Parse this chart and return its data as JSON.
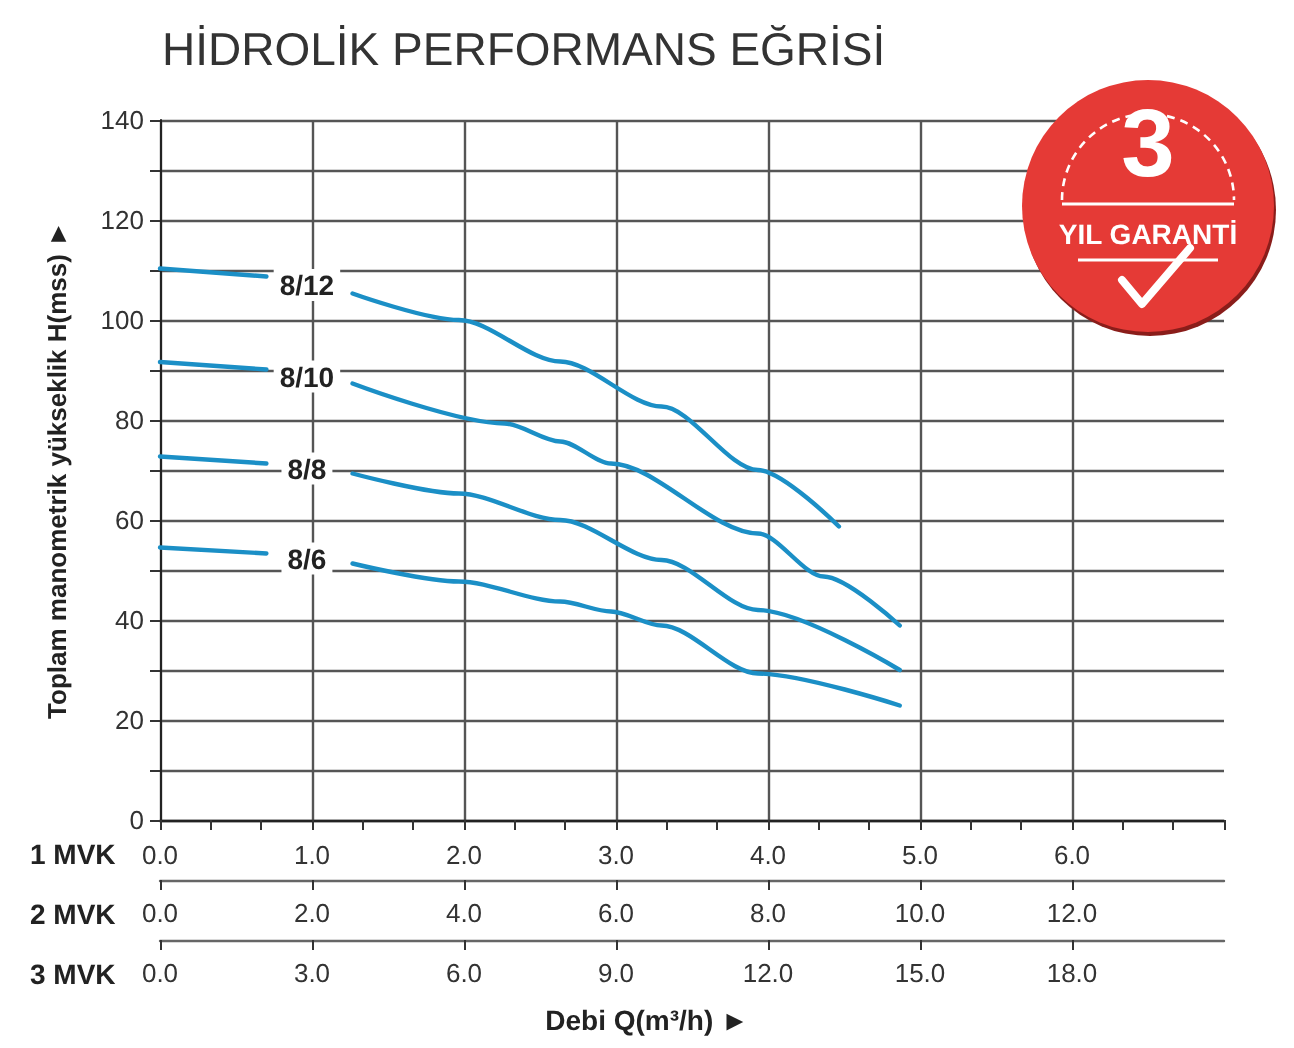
{
  "chart_data": {
    "type": "line",
    "title": "HİDROLİK PERFORMANS EĞRİSİ",
    "xlabel": "Debi Q(m³/h) ►",
    "ylabel": "Toplam manometrik yükseklik H(mss) ►",
    "annotations": [
      "1 MVK",
      "0.0",
      "1.0",
      "2.0",
      "3.0",
      "4.0",
      "5.0",
      "6.0",
      "3 MVK",
      "3",
      "YIL GARANTİ"
    ],
    "x2label": "2 MVK",
    "series": [
      {
        "name": "8/12",
        "color": "#1b8fc6",
        "x": [
          0,
          2.1,
          2.9,
          3.8,
          5.9,
          7.9,
          9.9,
          11.8,
          13.4
        ],
        "values": [
          110.3,
          108.7,
          null,
          105.3,
          100,
          91.7,
          82.7,
          70,
          58.7
        ]
      },
      {
        "name": "8/10",
        "color": "#1b8fc6",
        "x": [
          0,
          2.1,
          2.9,
          3.8,
          6.8,
          7.9,
          8.9,
          11.8,
          13.1,
          14.6
        ],
        "values": [
          91.6,
          90.1,
          null,
          87.3,
          79.3,
          75.7,
          71.3,
          57.3,
          48.7,
          38.9
        ]
      },
      {
        "name": "8/8",
        "color": "#1b8fc6",
        "x": [
          0,
          2.1,
          2.9,
          3.8,
          5.9,
          7.9,
          9.9,
          11.8,
          14.6
        ],
        "values": [
          72.7,
          71.3,
          null,
          69.3,
          65.3,
          60,
          52,
          42,
          30
        ]
      },
      {
        "name": "8/6",
        "color": "#1b8fc6",
        "x": [
          0,
          2.1,
          2.9,
          3.8,
          5.9,
          7.9,
          8.9,
          9.9,
          11.8,
          14.6
        ],
        "values": [
          54.5,
          53.3,
          null,
          51.3,
          47.7,
          43.7,
          41.7,
          38.9,
          29.3,
          22.9
        ]
      }
    ],
    "xlim": [
      0,
      21
    ],
    "xticks": [
      {
        "value": 0,
        "label": "0.0"
      },
      {
        "value": 1,
        "label": null
      },
      {
        "value": 2,
        "label": null
      },
      {
        "value": 3,
        "label": "3.0"
      },
      {
        "value": 4,
        "label": null
      },
      {
        "value": 5,
        "label": null
      },
      {
        "value": 6,
        "label": "6.0"
      },
      {
        "value": 7,
        "label": null
      },
      {
        "value": 8,
        "label": null
      },
      {
        "value": 9,
        "label": "9.0"
      },
      {
        "value": 10,
        "label": null
      },
      {
        "value": 11,
        "label": null
      },
      {
        "value": 12,
        "label": "12.0"
      },
      {
        "value": 13,
        "label": null
      },
      {
        "value": 14,
        "label": null
      },
      {
        "value": 15,
        "label": "15.0"
      },
      {
        "value": 16,
        "label": null
      },
      {
        "value": 17,
        "label": null
      },
      {
        "value": 18,
        "label": "18.0"
      },
      {
        "value": 19,
        "label": null
      },
      {
        "value": 20,
        "label": null
      },
      {
        "value": 21,
        "label": null
      }
    ],
    "x2lim": [
      0,
      14
    ],
    "x2ticks": [
      {
        "value": 0,
        "label": "0.0"
      },
      {
        "value": 2,
        "label": "2.0"
      },
      {
        "value": 4,
        "label": "4.0"
      },
      {
        "value": 6,
        "label": "6.0"
      },
      {
        "value": 8,
        "label": "8.0"
      },
      {
        "value": 10,
        "label": "10.0"
      },
      {
        "value": 12,
        "label": "12.0"
      }
    ],
    "ylim": [
      0,
      140
    ],
    "yticks": [
      0,
      {
        "value": 10,
        "label": null
      },
      20,
      {
        "value": 30,
        "label": null
      },
      40,
      {
        "value": 50,
        "label": null
      },
      60,
      {
        "value": 70,
        "label": null
      },
      80,
      {
        "value": 90,
        "label": null
      },
      100,
      {
        "value": 110,
        "label": null
      },
      120,
      {
        "value": 130,
        "label": null
      },
      140
    ],
    "grid": true,
    "legend": false,
    "marker": "none",
    "line_style": "solid"
  }
}
